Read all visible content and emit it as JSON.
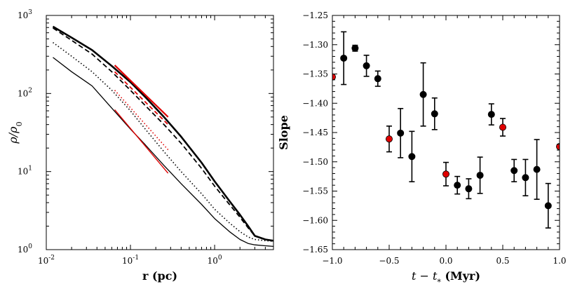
{
  "chart_data": [
    {
      "type": "line",
      "xscale": "log",
      "yscale": "log",
      "xlabel": "r (pc)",
      "ylabel": "ρ/ρ0",
      "ylabel_base": "ρ/ρ",
      "ylabel_sub": "0",
      "xlim": [
        0.01,
        5.0
      ],
      "ylim": [
        1,
        1000
      ],
      "xticks": [
        {
          "value": 0.01,
          "base": "10",
          "exp": "-2"
        },
        {
          "value": 0.1,
          "base": "10",
          "exp": "-1"
        },
        {
          "value": 1,
          "base": "10",
          "exp": "0"
        }
      ],
      "yticks": [
        {
          "value": 1,
          "base": "10",
          "exp": "0"
        },
        {
          "value": 10,
          "base": "10",
          "exp": "1"
        },
        {
          "value": 100,
          "base": "10",
          "exp": "2"
        },
        {
          "value": 1000,
          "base": "10",
          "exp": "3"
        }
      ],
      "series": [
        {
          "name": "profile thick solid",
          "style": "solid-thick",
          "color": "#000000",
          "x": [
            0.012,
            0.02,
            0.035,
            0.06,
            0.1,
            0.15,
            0.25,
            0.4,
            0.7,
            1.0,
            1.5,
            2.0,
            2.5,
            3.0,
            4.0,
            5.0
          ],
          "y": [
            720,
            520,
            360,
            225,
            140,
            90,
            50,
            28,
            13,
            7.5,
            4.2,
            2.8,
            2.0,
            1.5,
            1.35,
            1.3
          ]
        },
        {
          "name": "profile dashed",
          "style": "dashed",
          "color": "#000000",
          "x": [
            0.012,
            0.02,
            0.035,
            0.06,
            0.1,
            0.15,
            0.25,
            0.4,
            0.7,
            1.0,
            1.5,
            2.0,
            2.5,
            3.0,
            4.0,
            5.0
          ],
          "y": [
            690,
            480,
            320,
            190,
            110,
            70,
            40,
            23,
            11,
            6.5,
            3.8,
            2.6,
            1.9,
            1.5,
            1.35,
            1.3
          ]
        },
        {
          "name": "profile dotted",
          "style": "dotted",
          "color": "#000000",
          "x": [
            0.012,
            0.02,
            0.035,
            0.06,
            0.1,
            0.15,
            0.25,
            0.4,
            0.7,
            1.0,
            1.5,
            2.0,
            2.5,
            3.0,
            4.0,
            5.0
          ],
          "y": [
            450,
            300,
            190,
            110,
            60,
            35,
            18,
            10,
            5.2,
            3.3,
            2.2,
            1.7,
            1.45,
            1.35,
            1.3,
            1.28
          ]
        },
        {
          "name": "profile thin solid",
          "style": "solid-thin",
          "color": "#000000",
          "x": [
            0.012,
            0.02,
            0.035,
            0.06,
            0.1,
            0.15,
            0.25,
            0.4,
            0.7,
            1.0,
            1.5,
            2.0,
            2.5,
            3.0,
            4.0,
            5.0
          ],
          "y": [
            290,
            190,
            125,
            65,
            35,
            22,
            12,
            7,
            3.8,
            2.5,
            1.7,
            1.35,
            1.2,
            1.15,
            1.12,
            1.1
          ]
        },
        {
          "name": "fit thick solid",
          "style": "solid-red",
          "color": "#e00000",
          "x": [
            0.065,
            0.28
          ],
          "y": [
            230,
            50
          ]
        },
        {
          "name": "fit dashed",
          "style": "dashed-red",
          "color": "#e00000",
          "x": [
            0.065,
            0.28
          ],
          "y": [
            190,
            40
          ]
        },
        {
          "name": "fit dotted",
          "style": "dotted-red",
          "color": "#e00000",
          "x": [
            0.065,
            0.28
          ],
          "y": [
            110,
            19
          ]
        },
        {
          "name": "fit thin solid",
          "style": "solid-red-thin",
          "color": "#e00000",
          "x": [
            0.065,
            0.28
          ],
          "y": [
            62,
            9.5
          ]
        }
      ]
    },
    {
      "type": "scatter",
      "xlabel_math": "t − t",
      "xlabel_sub": "*",
      "xlabel_unit": " (Myr)",
      "ylabel": "Slope",
      "xlim": [
        -1.0,
        1.0
      ],
      "ylim": [
        -1.65,
        -1.25
      ],
      "xticks": [
        "−1.0",
        "−0.5",
        "0.0",
        "0.5",
        "1.0"
      ],
      "xtick_values": [
        -1.0,
        -0.5,
        0.0,
        0.5,
        1.0
      ],
      "yticks": [
        "−1.65",
        "−1.60",
        "−1.55",
        "−1.50",
        "−1.45",
        "−1.40",
        "−1.35",
        "−1.30",
        "−1.25"
      ],
      "ytick_values": [
        -1.65,
        -1.6,
        -1.55,
        -1.5,
        -1.45,
        -1.4,
        -1.35,
        -1.3,
        -1.25
      ],
      "points": [
        {
          "x": -1.0,
          "y": -1.355,
          "err": 0,
          "color": "#e00000"
        },
        {
          "x": -0.9,
          "y": -1.323,
          "err": 0.045,
          "color": "#000000"
        },
        {
          "x": -0.8,
          "y": -1.306,
          "err": 0.005,
          "color": "#000000"
        },
        {
          "x": -0.7,
          "y": -1.336,
          "err": 0.018,
          "color": "#000000"
        },
        {
          "x": -0.6,
          "y": -1.358,
          "err": 0.013,
          "color": "#000000"
        },
        {
          "x": -0.5,
          "y": -1.461,
          "err": 0.022,
          "color": "#e00000"
        },
        {
          "x": -0.4,
          "y": -1.451,
          "err": 0.042,
          "color": "#000000"
        },
        {
          "x": -0.3,
          "y": -1.491,
          "err": 0.043,
          "color": "#000000"
        },
        {
          "x": -0.2,
          "y": -1.385,
          "err": 0.054,
          "color": "#000000"
        },
        {
          "x": -0.1,
          "y": -1.418,
          "err": 0.027,
          "color": "#000000"
        },
        {
          "x": 0.0,
          "y": -1.521,
          "err": 0.02,
          "color": "#e00000"
        },
        {
          "x": 0.1,
          "y": -1.54,
          "err": 0.015,
          "color": "#000000"
        },
        {
          "x": 0.2,
          "y": -1.546,
          "err": 0.017,
          "color": "#000000"
        },
        {
          "x": 0.3,
          "y": -1.523,
          "err": 0.031,
          "color": "#000000"
        },
        {
          "x": 0.4,
          "y": -1.419,
          "err": 0.018,
          "color": "#000000"
        },
        {
          "x": 0.5,
          "y": -1.441,
          "err": 0.015,
          "color": "#e00000"
        },
        {
          "x": 0.6,
          "y": -1.515,
          "err": 0.019,
          "color": "#000000"
        },
        {
          "x": 0.7,
          "y": -1.527,
          "err": 0.031,
          "color": "#000000"
        },
        {
          "x": 0.8,
          "y": -1.513,
          "err": 0.051,
          "color": "#000000"
        },
        {
          "x": 0.9,
          "y": -1.575,
          "err": 0.038,
          "color": "#000000"
        },
        {
          "x": 1.0,
          "y": -1.474,
          "err": 0,
          "color": "#e00000"
        }
      ]
    }
  ]
}
